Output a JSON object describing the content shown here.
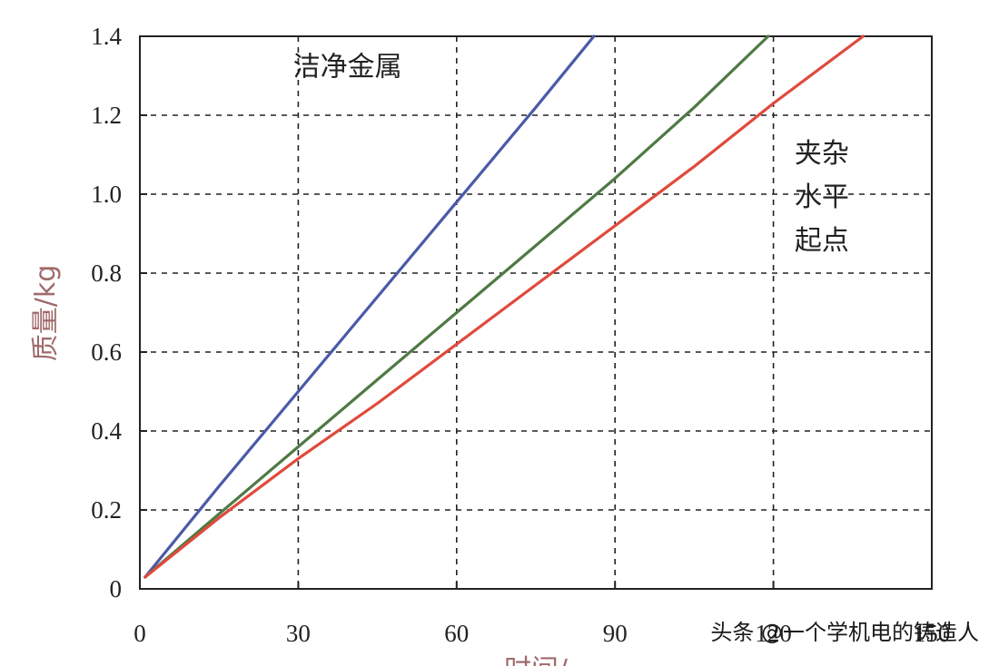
{
  "chart_data": {
    "type": "line",
    "xlabel": "时间/",
    "ylabel": "质量/kg",
    "xlim": [
      0,
      150
    ],
    "ylim": [
      0,
      1.4
    ],
    "xticks": [
      "0",
      "30",
      "60",
      "90",
      "120",
      "150"
    ],
    "yticks": [
      "0",
      "0.2",
      "0.4",
      "0.6",
      "0.8",
      "1.0",
      "1.2",
      "1.4"
    ],
    "grid": true,
    "grid_style": "dashed",
    "series": [
      {
        "color": "#4a5aa8",
        "x": [
          1,
          15,
          30,
          45,
          60,
          75,
          86
        ],
        "y": [
          0.03,
          0.26,
          0.5,
          0.74,
          0.98,
          1.22,
          1.4
        ]
      },
      {
        "color": "#4e7a44",
        "x": [
          1,
          15,
          30,
          45,
          60,
          75,
          90,
          105,
          119
        ],
        "y": [
          0.03,
          0.19,
          0.36,
          0.53,
          0.7,
          0.87,
          1.04,
          1.22,
          1.4
        ]
      },
      {
        "color": "#e04a3c",
        "x": [
          1,
          15,
          30,
          45,
          60,
          75,
          90,
          105,
          120,
          137
        ],
        "y": [
          0.03,
          0.18,
          0.33,
          0.47,
          0.62,
          0.77,
          0.92,
          1.07,
          1.23,
          1.4
        ]
      }
    ],
    "annotations": [
      {
        "text": "洁净金属",
        "x": 29,
        "y": 1.3
      },
      {
        "text": "夹杂",
        "x": 124,
        "y": 1.08
      },
      {
        "text": "水平",
        "x": 124,
        "y": 0.97
      },
      {
        "text": "起点",
        "x": 124,
        "y": 0.86
      }
    ]
  },
  "watermark": "头条 @一个学机电的铸造人"
}
